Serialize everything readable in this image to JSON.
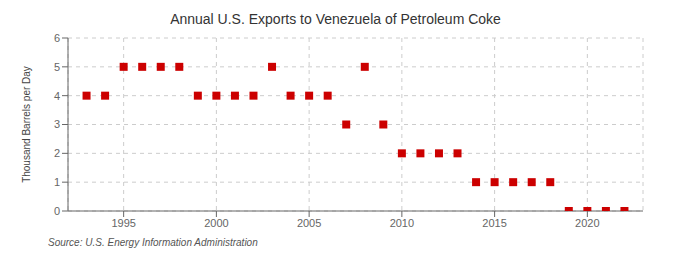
{
  "chart_data": {
    "type": "scatter",
    "title": "Annual U.S. Exports to Venezuela of Petroleum Coke",
    "ylabel": "Thousand Barrels per Day",
    "annotations": [
      "Source: U.S. Energy Information Administration"
    ],
    "x": [
      1993,
      1994,
      1995,
      1996,
      1997,
      1998,
      1999,
      2000,
      2001,
      2002,
      2003,
      2004,
      2005,
      2006,
      2007,
      2008,
      2009,
      2010,
      2011,
      2012,
      2013,
      2014,
      2015,
      2016,
      2017,
      2018,
      2019,
      2020,
      2021,
      2022
    ],
    "values": [
      4,
      4,
      5,
      5,
      5,
      5,
      4,
      4,
      4,
      4,
      5,
      4,
      4,
      4,
      3,
      5,
      3,
      2,
      2,
      2,
      2,
      1,
      1,
      1,
      1,
      1,
      0,
      0,
      0,
      0
    ],
    "color": "#cc0000",
    "marker": "square",
    "xlim": [
      1992,
      2023
    ],
    "ylim": [
      0,
      6
    ],
    "xticks": [
      1995,
      2000,
      2005,
      2010,
      2015,
      2020
    ],
    "yticks": [
      0,
      1,
      2,
      3,
      4,
      5,
      6
    ],
    "grid": true
  }
}
